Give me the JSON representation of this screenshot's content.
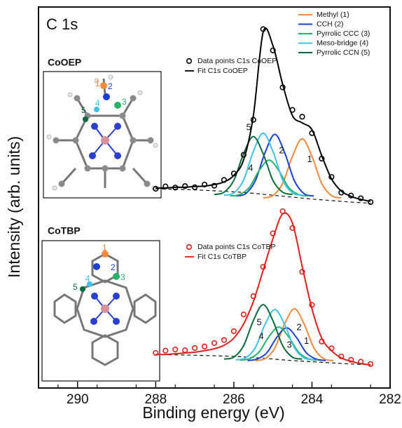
{
  "chart_data": {
    "type": "line",
    "title": "C 1s",
    "x_label": "Binding energy (eV)",
    "y_label": "Intensity (arb. units)",
    "xlim": [
      291,
      282
    ],
    "xticks": [
      290,
      288,
      286,
      284,
      282
    ],
    "xminorticks": [
      290.5,
      289.5,
      288.5,
      287.5,
      286.5,
      285.5,
      284.5,
      283.5,
      282.5
    ],
    "ylim": [
      0,
      100
    ],
    "components": [
      {
        "name": "Methyl (1)",
        "color": "#f4893e"
      },
      {
        "name": "CCH (2)",
        "color": "#1a3fd6"
      },
      {
        "name": "Pyrrolic CCC (3)",
        "color": "#22b56a"
      },
      {
        "name": "Meso-bridge (4)",
        "color": "#3fc1ea"
      },
      {
        "name": "Pyrrolic CCN (5)",
        "color": "#0b6b3a"
      }
    ],
    "panels": [
      {
        "name": "CoOEP",
        "data_name": "Data points C1s CoOEP",
        "fit_name": "Fit C1s CoOEP",
        "color": "#000000",
        "inset_labels": [
          "1",
          "2",
          "3",
          "4",
          "5"
        ],
        "x": [
          288,
          287.75,
          287.5,
          287.25,
          287,
          286.75,
          286.5,
          286.25,
          286,
          285.75,
          285.5,
          285.25,
          285,
          284.75,
          284.5,
          284.25,
          284,
          283.75,
          283.5,
          283.25,
          283,
          282.75,
          282.5
        ],
        "data": [
          52.3,
          52.9,
          52.6,
          53.0,
          52.7,
          53.4,
          53.1,
          54.6,
          56.3,
          61.2,
          70.4,
          94.2,
          88.6,
          78.9,
          73.0,
          71.2,
          66.9,
          60.2,
          55.4,
          51.3,
          50.5,
          49.8,
          48.8
        ],
        "fit": [
          52.5,
          52.5,
          52.7,
          52.7,
          52.9,
          53.0,
          53.4,
          54.1,
          55.8,
          59.9,
          71.5,
          93.4,
          89.9,
          79.7,
          71.5,
          69.6,
          67.8,
          61.0,
          54.9,
          51.7,
          50.3,
          49.5,
          49.0
        ],
        "background": {
          "x": [
            288,
            287,
            286,
            285.5,
            285,
            284.5,
            284,
            283.5,
            283,
            282.5
          ],
          "values": [
            52.3,
            52.0,
            51.5,
            51.1,
            50.6,
            50.1,
            49.6,
            49.2,
            48.8,
            48.5
          ]
        },
        "peaks": [
          {
            "x": [
              283.25,
              283.5,
              283.75,
              284,
              284.25,
              284.5,
              284.75,
              285,
              285.25
            ],
            "values": [
              49.9,
              50.5,
              53.7,
              60.8,
              65.4,
              60.8,
              53.7,
              50.5,
              49.9
            ]
          },
          {
            "x": [
              283.95,
              284.2,
              284.45,
              284.7,
              284.95,
              285.2,
              285.45,
              285.7,
              285.95
            ],
            "values": [
              50.4,
              51.0,
              54.4,
              61.8,
              66.6,
              61.8,
              54.4,
              51.0,
              50.4
            ]
          },
          {
            "x": [
              284.1,
              284.35,
              284.6,
              284.85,
              285.1,
              285.35,
              285.6,
              285.85,
              286.1
            ],
            "values": [
              50.4,
              50.8,
              52.7,
              57.1,
              59.8,
              57.1,
              52.7,
              50.8,
              50.4
            ]
          },
          {
            "x": [
              284.25,
              284.5,
              284.75,
              285,
              285.25,
              285.5,
              285.75,
              286,
              286.25
            ],
            "values": [
              50.6,
              51.2,
              54.6,
              62.1,
              66.9,
              62.1,
              54.6,
              51.2,
              50.6
            ]
          },
          {
            "x": [
              284.5,
              284.75,
              285,
              285.25,
              285.5,
              285.75,
              286,
              286.25,
              286.5
            ],
            "values": [
              50.8,
              51.4,
              54.5,
              61.5,
              66.0,
              61.5,
              54.5,
              51.4,
              50.8
            ]
          }
        ],
        "annotations": [
          {
            "text": "5",
            "x": 285.62,
            "y": 68.3
          },
          {
            "text": "4",
            "x": 285.57,
            "y": 57.6
          },
          {
            "text": "2",
            "x": 284.78,
            "y": 62.2
          },
          {
            "text": "1",
            "x": 284.06,
            "y": 59.9
          }
        ]
      },
      {
        "name": "CoTBP",
        "data_name": "Data points C1s CoTBP",
        "fit_name": "Fit C1s CoTBP",
        "color": "#e0201b",
        "inset_labels": [
          "1",
          "2",
          "3",
          "4",
          "5"
        ],
        "x": [
          288,
          287.75,
          287.5,
          287.25,
          287,
          286.75,
          286.5,
          286.25,
          286,
          285.75,
          285.5,
          285.25,
          285,
          284.75,
          284.5,
          284.25,
          284,
          283.75,
          283.5,
          283.25,
          283,
          282.75,
          282.5
        ],
        "data": [
          9.2,
          9.8,
          10.1,
          9.9,
          10.5,
          10.9,
          11.8,
          12.6,
          14.9,
          19.3,
          24.1,
          31.8,
          40.6,
          46.4,
          42.0,
          30.5,
          21.8,
          12.2,
          10.4,
          8.3,
          7.4,
          6.9,
          6.3
        ],
        "fit": [
          8.8,
          8.8,
          9.0,
          9.2,
          9.4,
          9.8,
          10.3,
          11.2,
          13.1,
          16.8,
          22.7,
          30.9,
          39.2,
          45.7,
          43.3,
          31.9,
          20.8,
          13.1,
          9.8,
          7.9,
          7.0,
          6.4,
          6.1
        ],
        "background": {
          "x": [
            288,
            287,
            286,
            285.5,
            285,
            284.5,
            284,
            283.5,
            283,
            282.5
          ],
          "values": [
            8.8,
            8.6,
            8.3,
            8.0,
            7.6,
            7.2,
            6.9,
            6.6,
            6.3,
            6.1
          ]
        },
        "peaks": [
          {
            "x": [
              283.45,
              283.7,
              283.95,
              284.2,
              284.45,
              284.7,
              284.95,
              285.2,
              285.45
            ],
            "values": [
              7.2,
              7.7,
              10.5,
              16.8,
              20.8,
              16.8,
              10.5,
              7.7,
              7.2
            ]
          },
          {
            "x": [
              283.65,
              283.9,
              284.15,
              284.4,
              284.65,
              284.9,
              285.15,
              285.4,
              285.65
            ],
            "values": [
              7.2,
              7.6,
              9.3,
              13.3,
              15.8,
              13.3,
              9.3,
              7.6,
              7.2
            ]
          },
          {
            "x": [
              283.85,
              284.1,
              284.35,
              284.6,
              284.85,
              285.1,
              285.35,
              285.6,
              285.85
            ],
            "values": [
              7.3,
              7.7,
              9.5,
              13.5,
              16.0,
              13.5,
              9.5,
              7.7,
              7.3
            ]
          },
          {
            "x": [
              283.95,
              284.2,
              284.45,
              284.7,
              284.95,
              285.2,
              285.45,
              285.7,
              285.95
            ],
            "values": [
              7.4,
              7.9,
              10.6,
              16.7,
              20.6,
              16.7,
              10.6,
              7.9,
              7.4
            ]
          },
          {
            "x": [
              284.25,
              284.5,
              284.75,
              285,
              285.25,
              285.5,
              285.75,
              286,
              286.25
            ],
            "values": [
              7.6,
              8.1,
              11.1,
              17.7,
              21.9,
              17.7,
              11.1,
              8.1,
              7.6
            ]
          }
        ],
        "annotations": [
          {
            "text": "5",
            "x": 285.35,
            "y": 17.1
          },
          {
            "text": "4",
            "x": 285.3,
            "y": 13.4
          },
          {
            "text": "3",
            "x": 284.58,
            "y": 11.2
          },
          {
            "text": "2",
            "x": 284.33,
            "y": 15.8
          },
          {
            "text": "1",
            "x": 284.14,
            "y": 12.2
          }
        ]
      }
    ]
  }
}
